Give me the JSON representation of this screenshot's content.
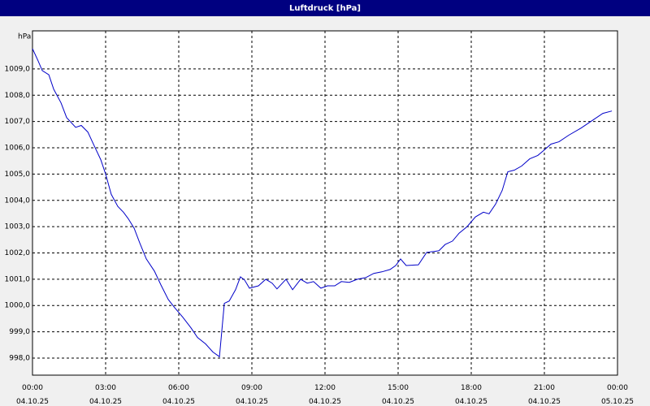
{
  "chart_data": {
    "type": "line",
    "title": "Luftdruck [hPa]",
    "y_label": "hPa",
    "x": [
      0,
      0.23,
      0.4,
      0.67,
      0.87,
      1.17,
      1.4,
      1.77,
      2.0,
      2.27,
      2.53,
      2.8,
      3.0,
      3.23,
      3.5,
      3.73,
      3.93,
      4.17,
      4.4,
      4.67,
      5.0,
      5.27,
      5.57,
      5.83,
      6.17,
      6.5,
      6.77,
      7.1,
      7.4,
      7.67,
      7.87,
      8.07,
      8.33,
      8.53,
      8.7,
      8.9,
      9.27,
      9.57,
      9.83,
      10.03,
      10.4,
      10.67,
      11.0,
      11.27,
      11.53,
      11.83,
      12.1,
      12.4,
      12.67,
      13.0,
      13.33,
      13.67,
      14.0,
      14.33,
      14.67,
      14.9,
      15.1,
      15.33,
      15.83,
      16.17,
      16.67,
      16.93,
      17.23,
      17.5,
      17.83,
      18.17,
      18.5,
      18.73,
      19.0,
      19.27,
      19.5,
      19.77,
      20.07,
      20.4,
      20.73,
      21.0,
      21.27,
      21.6,
      22.0,
      22.5,
      23.0,
      23.4,
      23.77
    ],
    "series": [
      {
        "color": "#0000c8",
        "values": [
          1009.77,
          1009.31,
          1008.94,
          1008.78,
          1008.23,
          1007.71,
          1007.15,
          1006.78,
          1006.85,
          1006.6,
          1006.08,
          1005.55,
          1005.0,
          1004.23,
          1003.77,
          1003.55,
          1003.3,
          1002.94,
          1002.38,
          1001.77,
          1001.31,
          1000.78,
          1000.23,
          999.92,
          999.55,
          999.15,
          998.78,
          998.54,
          998.23,
          998.05,
          1000.08,
          1000.17,
          1000.6,
          1001.09,
          1000.97,
          1000.66,
          1000.75,
          1001.0,
          1000.85,
          1000.63,
          1001.0,
          1000.6,
          1001.0,
          1000.85,
          1000.91,
          1000.66,
          1000.75,
          1000.75,
          1000.91,
          1000.88,
          1001.0,
          1001.06,
          1001.22,
          1001.28,
          1001.37,
          1001.52,
          1001.77,
          1001.52,
          1001.55,
          1002.02,
          1002.08,
          1002.32,
          1002.45,
          1002.75,
          1003.0,
          1003.37,
          1003.55,
          1003.49,
          1003.86,
          1004.38,
          1005.09,
          1005.15,
          1005.31,
          1005.58,
          1005.71,
          1005.92,
          1006.14,
          1006.23,
          1006.48,
          1006.75,
          1007.06,
          1007.31,
          1007.4
        ]
      }
    ],
    "xlim": [
      0,
      24
    ],
    "xticks": [
      {
        "value": 0,
        "label": "00:00\n04.10.25"
      },
      {
        "value": 3,
        "label": "03:00\n04.10.25"
      },
      {
        "value": 6,
        "label": "06:00\n04.10.25"
      },
      {
        "value": 9,
        "label": "09:00\n04.10.25"
      },
      {
        "value": 12,
        "label": "12:00\n04.10.25"
      },
      {
        "value": 15,
        "label": "15:00\n04.10.25"
      },
      {
        "value": 18,
        "label": "18:00\n04.10.25"
      },
      {
        "value": 21,
        "label": "21:00\n04.10.25"
      },
      {
        "value": 24,
        "label": "00:00\n05.10.25"
      }
    ],
    "ylim": [
      997.35,
      1010.45
    ],
    "yticks": [
      {
        "value": 998,
        "label": "998,0"
      },
      {
        "value": 999,
        "label": "999,0"
      },
      {
        "value": 1000,
        "label": "1000,0"
      },
      {
        "value": 1001,
        "label": "1001,0"
      },
      {
        "value": 1002,
        "label": "1002,0"
      },
      {
        "value": 1003,
        "label": "1003,0"
      },
      {
        "value": 1004,
        "label": "1004,0"
      },
      {
        "value": 1005,
        "label": "1005,0"
      },
      {
        "value": 1006,
        "label": "1006,0"
      },
      {
        "value": 1007,
        "label": "1007,0"
      },
      {
        "value": 1008,
        "label": "1008,0"
      },
      {
        "value": 1009,
        "label": "1009,0"
      }
    ],
    "grid": true
  }
}
